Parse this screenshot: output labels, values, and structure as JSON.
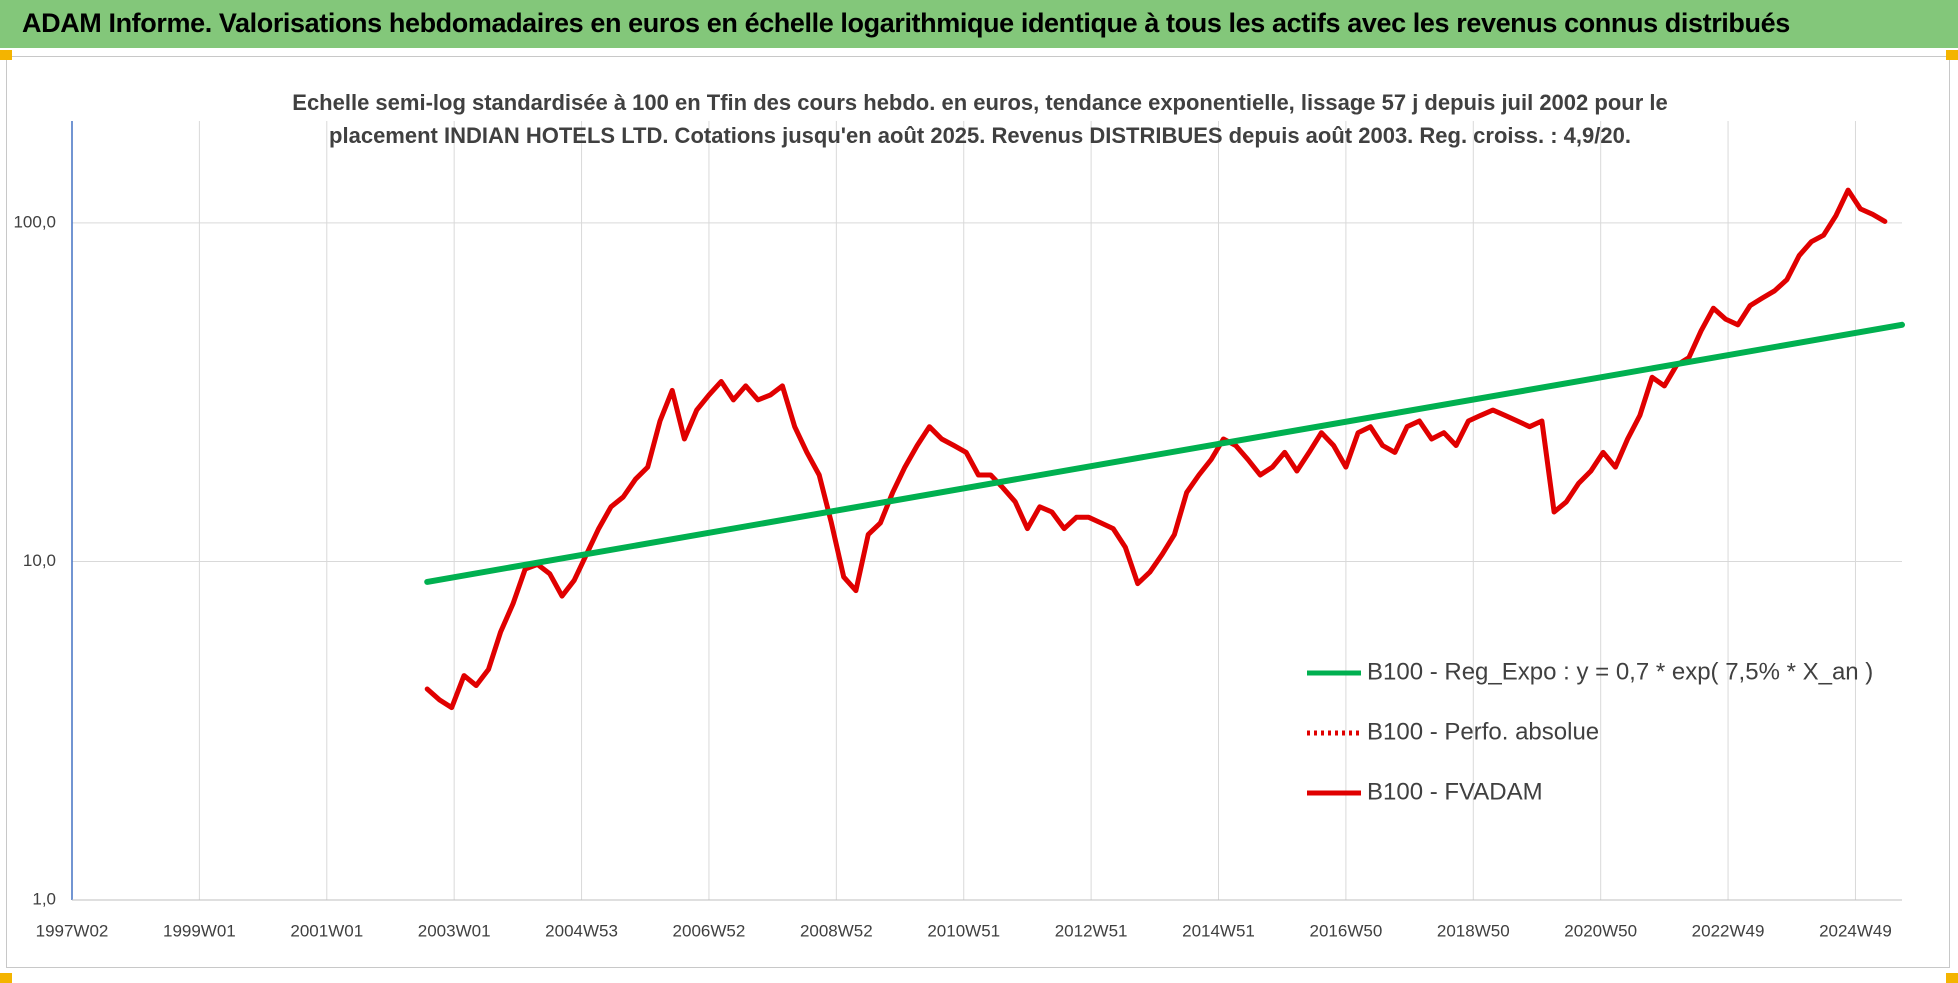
{
  "chart_data": {
    "type": "line",
    "title": "ADAM Informe. Valorisations hebdomadaires en euros en échelle logarithmique identique à tous les actifs avec les revenus connus distribués",
    "subtitle": "Echelle semi-log standardisée à 100 en Tfin des cours hebdo. en euros, tendance exponentielle, lissage 57 j depuis juil 2002 pour le placement INDIAN HOTELS LTD. Cotations jusqu'en août 2025. Revenus DISTRIBUES depuis août 2003. Reg. croiss. : 4,9/20.",
    "xlim": [
      0,
      1494
    ],
    "xticks": [
      {
        "value": 0,
        "label": "1997W02"
      },
      {
        "value": 104,
        "label": "1999W01"
      },
      {
        "value": 208,
        "label": "2001W01"
      },
      {
        "value": 312,
        "label": "2003W01"
      },
      {
        "value": 416,
        "label": "2004W53"
      },
      {
        "value": 520,
        "label": "2006W52"
      },
      {
        "value": 624,
        "label": "2008W52"
      },
      {
        "value": 728,
        "label": "2010W51"
      },
      {
        "value": 832,
        "label": "2012W51"
      },
      {
        "value": 936,
        "label": "2014W51"
      },
      {
        "value": 1040,
        "label": "2016W50"
      },
      {
        "value": 1144,
        "label": "2018W50"
      },
      {
        "value": 1248,
        "label": "2020W50"
      },
      {
        "value": 1352,
        "label": "2022W49"
      },
      {
        "value": 1456,
        "label": "2024W49"
      }
    ],
    "ylim": [
      1,
      200
    ],
    "yticks": [
      {
        "value": 1,
        "label": "1,0"
      },
      {
        "value": 10,
        "label": "10,0"
      },
      {
        "value": 100,
        "label": "100,0"
      }
    ],
    "log_scale": true,
    "grid": true,
    "legend": "right",
    "series": [
      {
        "name": "B100 - Reg_Expo : y = 0,7 * exp( 7,5% *  X_an )",
        "color": "#00b050",
        "style": "solid",
        "x": [
          290,
          1494
        ],
        "values": [
          8.7,
          50
        ]
      },
      {
        "name": "B100 - Perfo. absolue",
        "color": "#e00000",
        "style": "dotted"
      },
      {
        "name": "B100 - FVADAM",
        "color": "#e00000",
        "style": "solid",
        "x": [
          290,
          300,
          310,
          320,
          330,
          340,
          350,
          360,
          370,
          380,
          390,
          400,
          410,
          420,
          430,
          440,
          450,
          460,
          470,
          480,
          490,
          500,
          510,
          520,
          530,
          540,
          550,
          560,
          570,
          580,
          590,
          600,
          610,
          620,
          630,
          640,
          650,
          660,
          670,
          680,
          690,
          700,
          710,
          720,
          730,
          740,
          750,
          760,
          770,
          780,
          790,
          800,
          810,
          820,
          830,
          840,
          850,
          860,
          870,
          880,
          890,
          900,
          910,
          920,
          930,
          940,
          950,
          960,
          970,
          980,
          990,
          1000,
          1010,
          1020,
          1030,
          1040,
          1050,
          1060,
          1070,
          1080,
          1090,
          1100,
          1110,
          1120,
          1130,
          1140,
          1150,
          1160,
          1170,
          1180,
          1190,
          1200,
          1210,
          1220,
          1230,
          1240,
          1250,
          1260,
          1270,
          1280,
          1290,
          1300,
          1310,
          1320,
          1330,
          1340,
          1350,
          1360,
          1370,
          1380,
          1390,
          1400,
          1410,
          1420,
          1430,
          1440,
          1450,
          1460,
          1470,
          1480
        ],
        "values": [
          4.2,
          3.9,
          3.7,
          4.6,
          4.3,
          4.8,
          6.2,
          7.5,
          9.5,
          9.8,
          9.2,
          7.9,
          8.8,
          10.5,
          12.5,
          14.5,
          15.5,
          17.5,
          19,
          26,
          32,
          23,
          28,
          31,
          34,
          30,
          33,
          30,
          31,
          33,
          25,
          21,
          18,
          13,
          9,
          8.2,
          12,
          13,
          16,
          19,
          22,
          25,
          23,
          22,
          21,
          18,
          18,
          16.5,
          15,
          12.5,
          14.5,
          14,
          12.5,
          13.5,
          13.5,
          13,
          12.5,
          11,
          8.6,
          9.3,
          10.5,
          12,
          16,
          18,
          20,
          23,
          22,
          20,
          18,
          19,
          21,
          18.5,
          21,
          24,
          22,
          19,
          24,
          25,
          22,
          21,
          25,
          26,
          23,
          24,
          22,
          26,
          27,
          28,
          27,
          26,
          25,
          26,
          14,
          15,
          17,
          18.5,
          21,
          19,
          23,
          27,
          35,
          33,
          38,
          40,
          48,
          56,
          52,
          50,
          57,
          60,
          63,
          68,
          80,
          88,
          92,
          105,
          125,
          110,
          106,
          101
        ]
      }
    ]
  }
}
